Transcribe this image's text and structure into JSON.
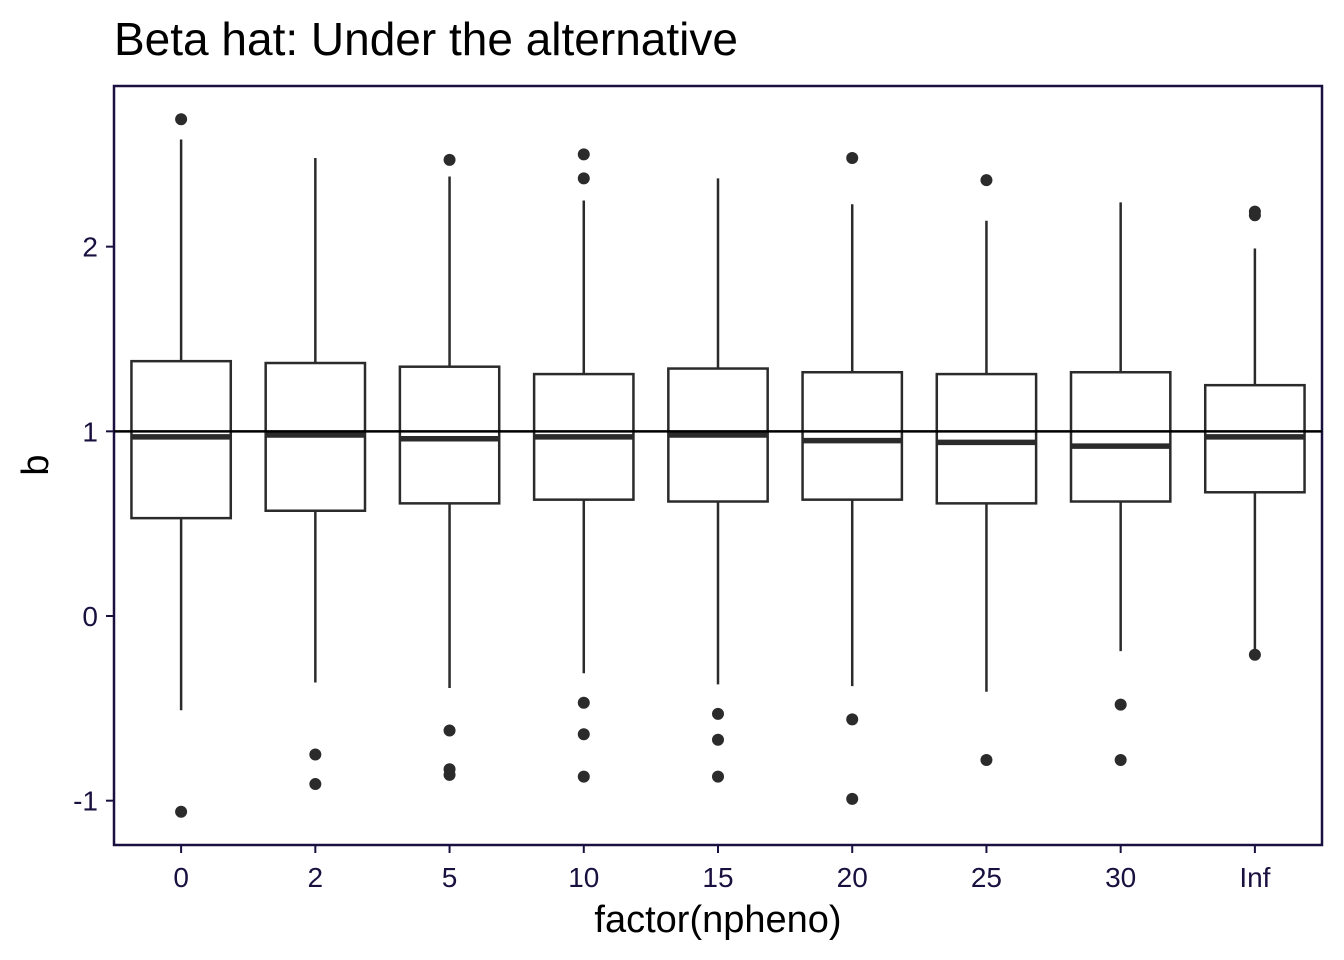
{
  "chart_data": {
    "type": "boxplot",
    "title": "Beta hat: Under the alternative",
    "xlabel": "factor(npheno)",
    "ylabel": "b",
    "categories": [
      "0",
      "2",
      "5",
      "10",
      "15",
      "20",
      "25",
      "30",
      "Inf"
    ],
    "ylim": [
      -1.24,
      2.87
    ],
    "yticks": [
      -1,
      0,
      1,
      2
    ],
    "ytick_labels": [
      "-1",
      "0",
      "1",
      "2"
    ],
    "reference_line": 1,
    "grid": false,
    "boxes": [
      {
        "category": "0",
        "whisker_low": -0.51,
        "q1": 0.53,
        "median": 0.97,
        "q3": 1.38,
        "whisker_high": 2.58,
        "outliers": [
          2.69,
          -1.06
        ]
      },
      {
        "category": "2",
        "whisker_low": -0.36,
        "q1": 0.57,
        "median": 0.98,
        "q3": 1.37,
        "whisker_high": 2.48,
        "outliers": [
          -0.75,
          -0.91
        ]
      },
      {
        "category": "5",
        "whisker_low": -0.39,
        "q1": 0.61,
        "median": 0.96,
        "q3": 1.35,
        "whisker_high": 2.38,
        "outliers": [
          2.47,
          -0.62,
          -0.83,
          -0.86
        ]
      },
      {
        "category": "10",
        "whisker_low": -0.31,
        "q1": 0.63,
        "median": 0.97,
        "q3": 1.31,
        "whisker_high": 2.25,
        "outliers": [
          2.5,
          2.37,
          -0.47,
          -0.64,
          -0.87
        ]
      },
      {
        "category": "15",
        "whisker_low": -0.37,
        "q1": 0.62,
        "median": 0.98,
        "q3": 1.34,
        "whisker_high": 2.37,
        "outliers": [
          -0.53,
          -0.67,
          -0.87
        ]
      },
      {
        "category": "20",
        "whisker_low": -0.38,
        "q1": 0.63,
        "median": 0.95,
        "q3": 1.32,
        "whisker_high": 2.23,
        "outliers": [
          2.48,
          -0.56,
          -0.99
        ]
      },
      {
        "category": "25",
        "whisker_low": -0.41,
        "q1": 0.61,
        "median": 0.94,
        "q3": 1.31,
        "whisker_high": 2.14,
        "outliers": [
          2.36,
          -0.78
        ]
      },
      {
        "category": "30",
        "whisker_low": -0.19,
        "q1": 0.62,
        "median": 0.92,
        "q3": 1.32,
        "whisker_high": 2.24,
        "outliers": [
          -0.48,
          -0.78
        ]
      },
      {
        "category": "Inf",
        "whisker_low": -0.21,
        "q1": 0.67,
        "median": 0.97,
        "q3": 1.25,
        "whisker_high": 1.99,
        "outliers": [
          2.19,
          2.17,
          -0.21
        ]
      }
    ],
    "colors": {
      "axis": "#1a1040",
      "tick_text": "#1a1040",
      "box": "#2b2b2b",
      "outlier": "#2b2b2b",
      "reference": "#000000"
    }
  }
}
